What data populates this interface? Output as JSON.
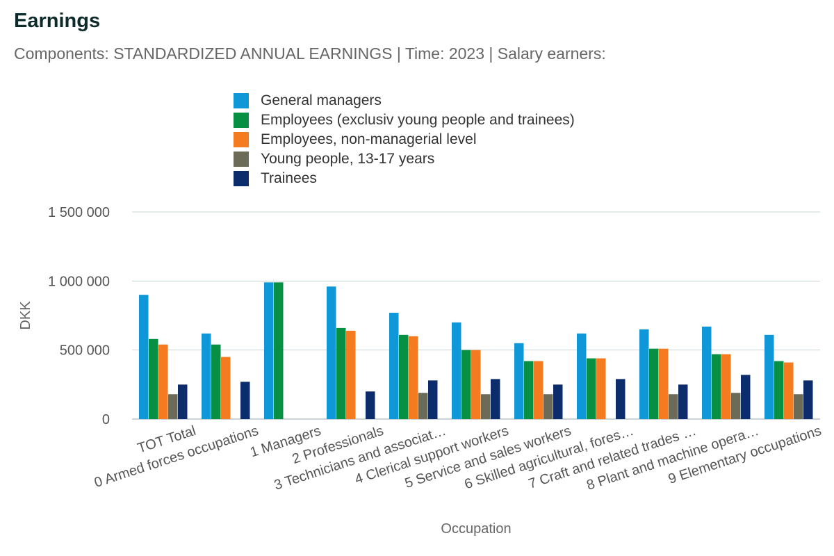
{
  "header": {
    "title": "Earnings",
    "subtitle": "Components: STANDARDIZED ANNUAL EARNINGS | Time: 2023 | Salary earners:"
  },
  "chart_data": {
    "type": "bar",
    "title": "Earnings",
    "subtitle": "Components: STANDARDIZED ANNUAL EARNINGS | Time: 2023 | Salary earners:",
    "xlabel": "Occupation",
    "ylabel": "DKK",
    "ylim": [
      0,
      1500000
    ],
    "yticks": [
      0,
      500000,
      1000000,
      1500000
    ],
    "ytick_labels": [
      "0",
      "500 000",
      "1 000 000",
      "1 500 000"
    ],
    "grid": true,
    "legend_position": "top",
    "categories": [
      "TOT Total",
      "0 Armed forces occupations",
      "1 Managers",
      "2 Professionals",
      "3 Technicians and associat…",
      "4 Clerical support workers",
      "5 Service and sales workers",
      "6 Skilled agricultural, fores…",
      "7 Craft and related trades …",
      "8 Plant and machine opera…",
      "9 Elementary occupations"
    ],
    "series": [
      {
        "name": "General managers",
        "color": "#0f97d8",
        "values": [
          900000,
          620000,
          990000,
          960000,
          770000,
          700000,
          550000,
          620000,
          650000,
          670000,
          610000
        ]
      },
      {
        "name": "Employees (exclusiv young people and trainees)",
        "color": "#079044",
        "values": [
          580000,
          540000,
          990000,
          660000,
          610000,
          500000,
          420000,
          440000,
          510000,
          470000,
          420000
        ]
      },
      {
        "name": "Employees, non-managerial level",
        "color": "#f47b20",
        "values": [
          540000,
          450000,
          null,
          640000,
          600000,
          500000,
          420000,
          440000,
          510000,
          470000,
          410000
        ]
      },
      {
        "name": "Young people, 13-17 years",
        "color": "#6b6b57",
        "values": [
          180000,
          null,
          null,
          null,
          190000,
          180000,
          180000,
          null,
          180000,
          190000,
          180000
        ]
      },
      {
        "name": "Trainees",
        "color": "#0c2c6b",
        "values": [
          250000,
          270000,
          null,
          200000,
          280000,
          290000,
          250000,
          290000,
          250000,
          320000,
          280000
        ]
      }
    ]
  }
}
